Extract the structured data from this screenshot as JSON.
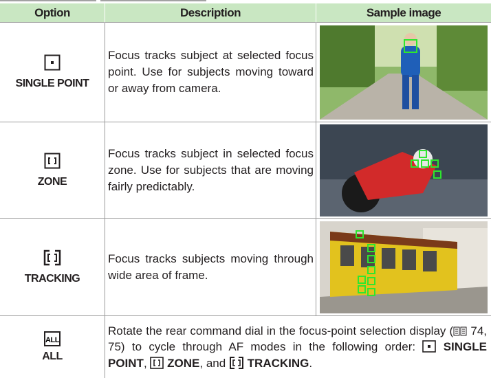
{
  "table": {
    "header": [
      "Option",
      "Description",
      "Sample image"
    ],
    "rows": [
      {
        "option": "SINGLE POINT",
        "description": "Focus tracks subject at selected focus point. Use for subjects moving toward or away from camera."
      },
      {
        "option": "ZONE",
        "description": "Focus tracks subject in selected focus zone. Use for subjects that are moving fairly predictably."
      },
      {
        "option": "TRACKING",
        "description": "Focus tracks subjects moving through wide area of frame."
      },
      {
        "option": "ALL",
        "icon_text": "ALL",
        "description": {
          "text_1": "Rotate the rear command dial in the focus-point selection display (",
          "page_ref": "74, 75",
          "text_2": ") to cycle through AF modes in the following order:",
          "order": [
            "SINGLE POINT",
            "ZONE",
            "TRACKING"
          ],
          "separators": [
            ",",
            ", and",
            "."
          ]
        }
      }
    ]
  }
}
